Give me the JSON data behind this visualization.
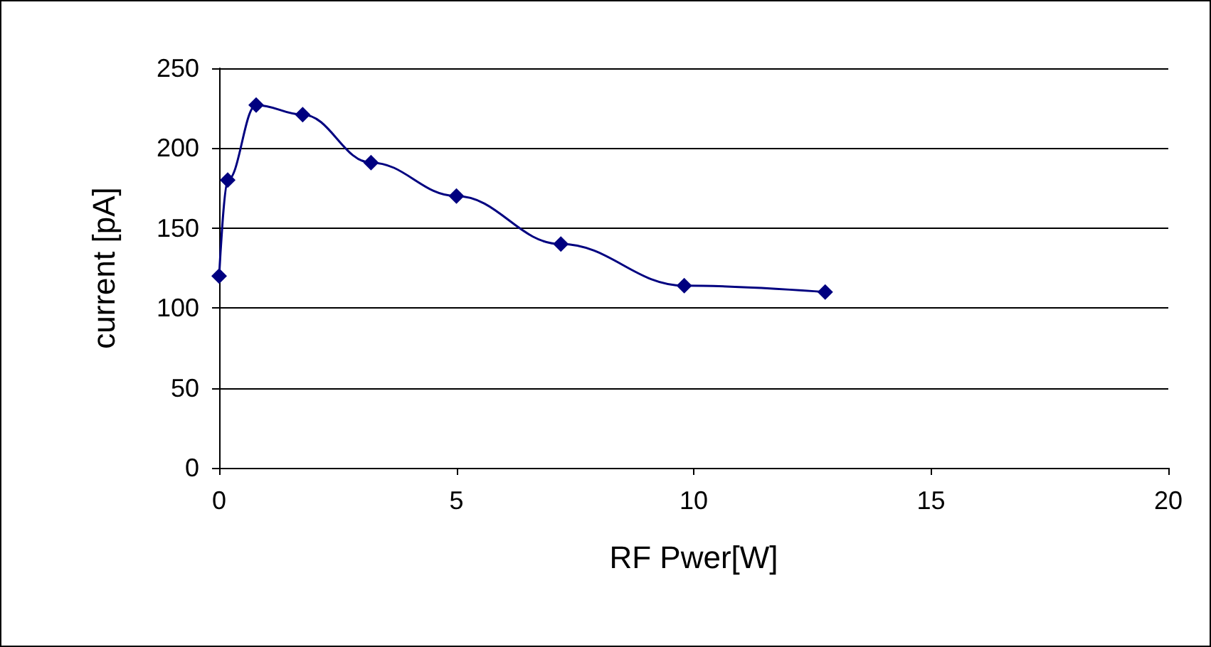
{
  "chart_data": {
    "type": "line",
    "xlabel": "RF Pwer[W]",
    "ylabel": "current [pA]",
    "x": [
      0,
      0.18,
      0.78,
      1.76,
      3.2,
      5,
      7.2,
      9.8,
      12.77
    ],
    "series": [
      {
        "color": "#000080",
        "values": [
          120,
          180,
          227,
          221,
          191,
          170,
          140,
          114,
          110
        ]
      }
    ],
    "xlim": [
      0,
      20
    ],
    "xticks": [
      0,
      5,
      10,
      15,
      20
    ],
    "ylim": [
      0,
      250
    ],
    "yticks": [
      0,
      50,
      100,
      150,
      200,
      250
    ],
    "grid": "y",
    "marker": "diamond",
    "line_style": "solid"
  }
}
